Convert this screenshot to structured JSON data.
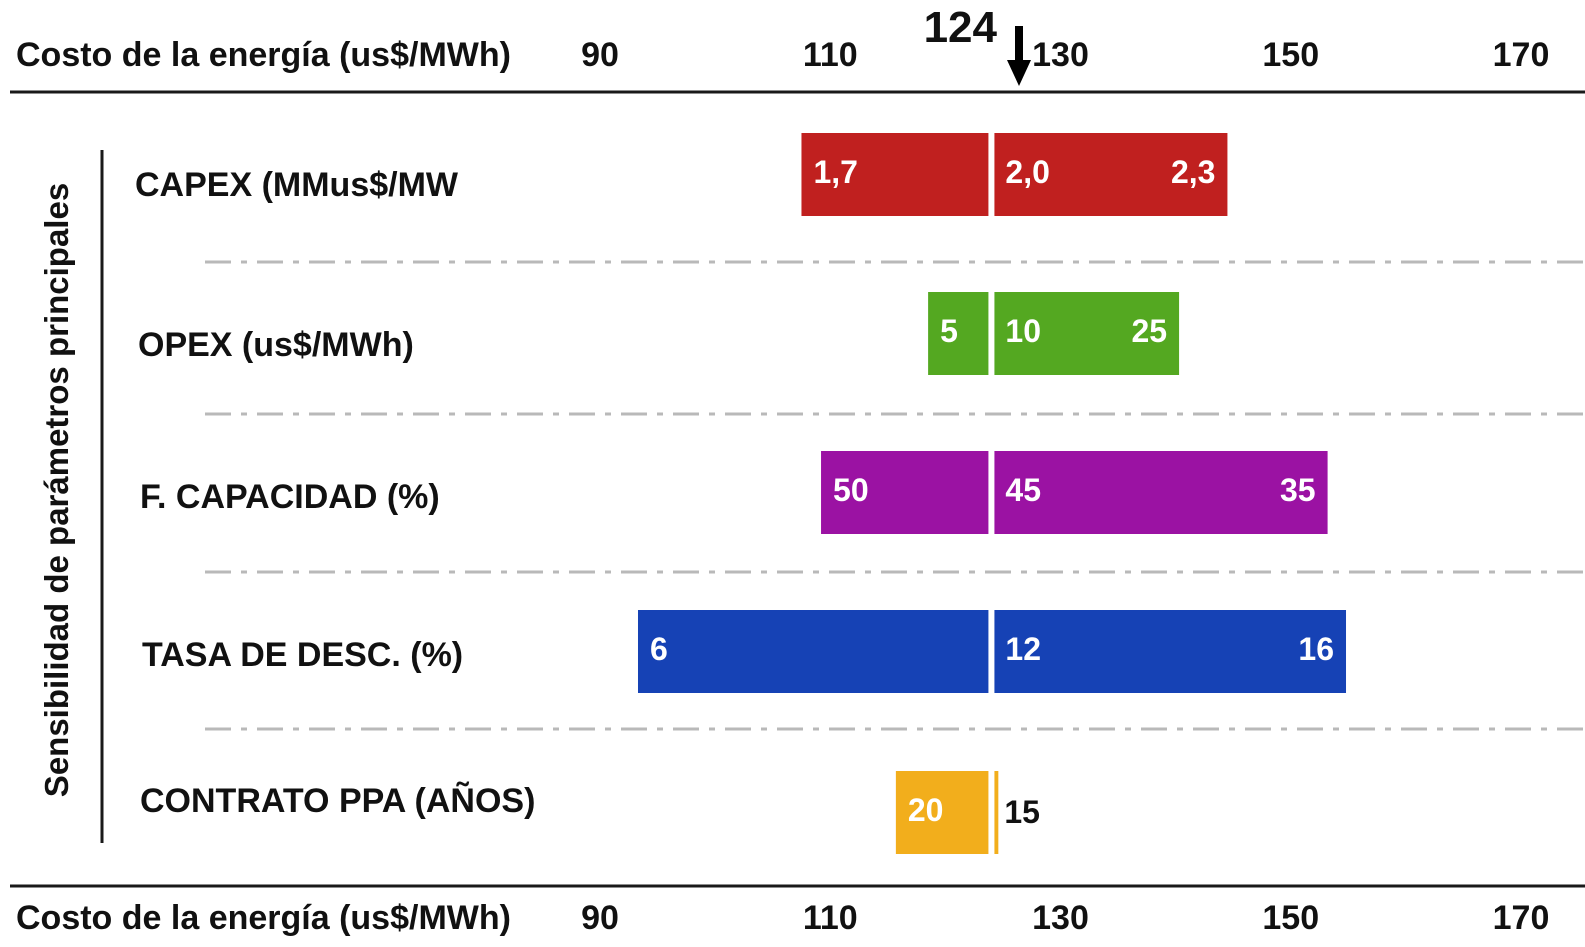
{
  "chart_data": {
    "type": "bar",
    "orientation": "horizontal",
    "subtype": "tornado",
    "axis_title_top": "Costo de la energía (us$/MWh)",
    "axis_title_bottom": "Costo de la energía (us$/MWh)",
    "ylabel": "Sensibilidad de parámetros principales",
    "xlim": [
      90,
      170
    ],
    "xticks": [
      "90",
      "110",
      "130",
      "150",
      "170"
    ],
    "base_value": 124,
    "base_label": "124",
    "grid": false,
    "row_separators": "dash-dot",
    "categories": [
      "CAPEX (MMus$/MW",
      "OPEX (us$/MWh)",
      "F. CAPACIDAD (%)",
      "TASA DE DESC. (%)",
      "CONTRATO PPA (AÑOS)"
    ],
    "rows": [
      {
        "label": "CAPEX (MMus$/MW",
        "low": 107.5,
        "high": 144.5,
        "color": "#C0201F",
        "low_param": "1,7",
        "base_param": "2,0",
        "high_param": "2,3"
      },
      {
        "label": "OPEX (us$/MWh)",
        "low": 118.5,
        "high": 140.3,
        "color": "#54A821",
        "low_param": "5",
        "base_param": "10",
        "high_param": "25"
      },
      {
        "label": "F. CAPACIDAD (%)",
        "low": 109.2,
        "high": 153.2,
        "color": "#9B12A3",
        "low_param": "50",
        "base_param": "45",
        "high_param": "35"
      },
      {
        "label": "TASA DE DESC. (%)",
        "low": 93.3,
        "high": 154.8,
        "color": "#1642B5",
        "low_param": "6",
        "base_param": "12",
        "high_param": "16"
      },
      {
        "label": "CONTRATO PPA (AÑOS)",
        "low": 115.7,
        "high": 124.6,
        "color": "#F2AE1C",
        "low_param": "20",
        "base_param": "15",
        "high_param": ""
      }
    ]
  }
}
